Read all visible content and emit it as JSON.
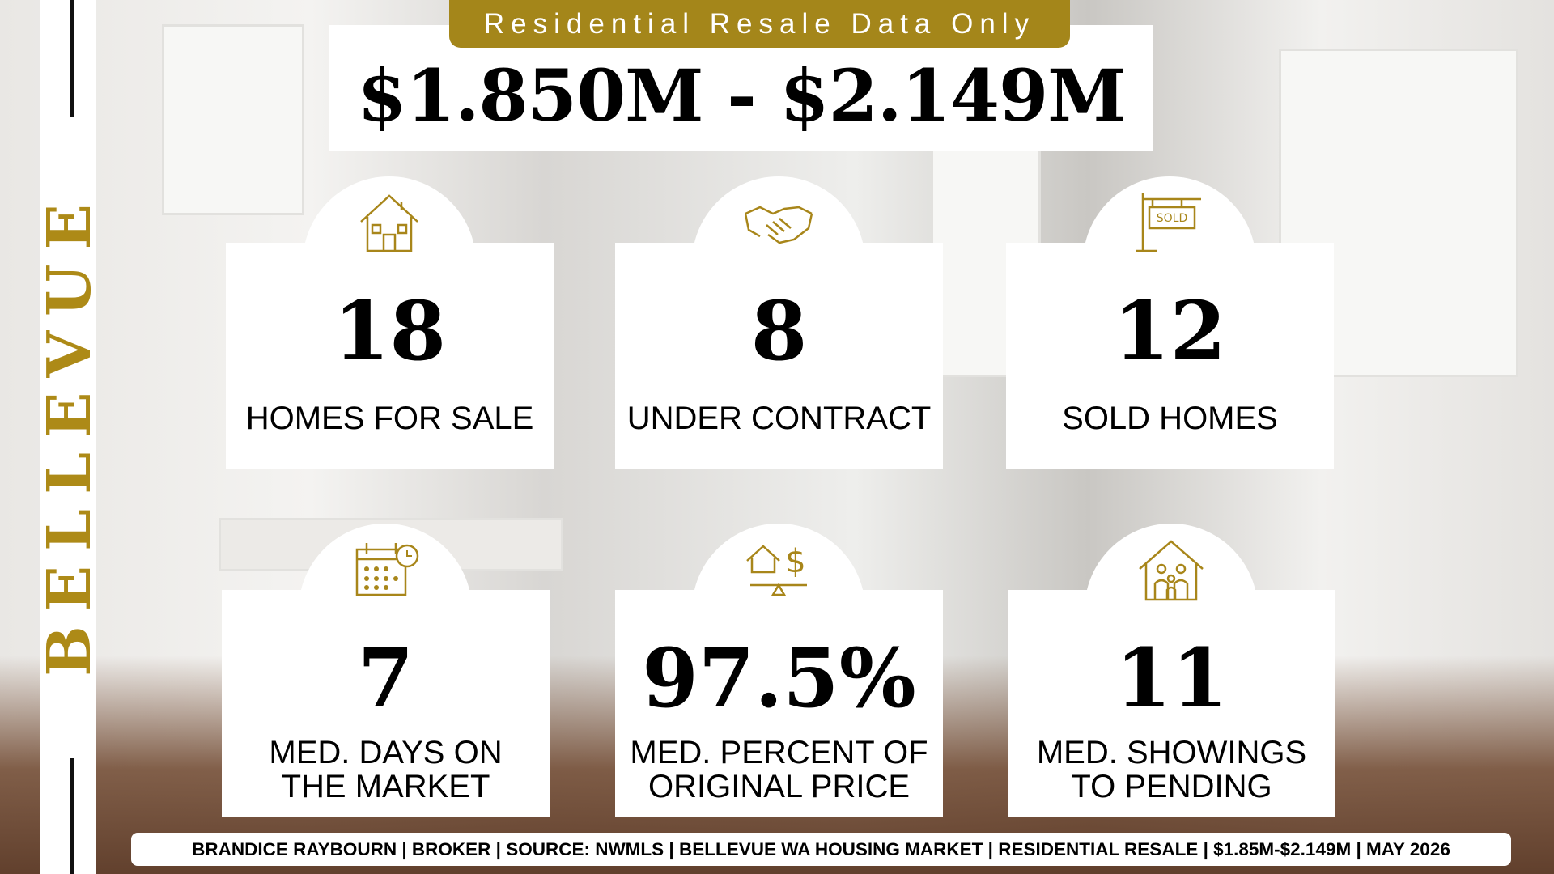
{
  "side_label": "BELLEVUE",
  "badge": "Residential Resale Data Only",
  "price_range": "$1.850M - $2.149M",
  "cards": [
    {
      "value": "18",
      "label_lines": [
        "HOMES FOR SALE"
      ]
    },
    {
      "value": "8",
      "label_lines": [
        "UNDER CONTRACT"
      ]
    },
    {
      "value": "12",
      "label_lines": [
        "SOLD HOMES"
      ]
    },
    {
      "value": "7",
      "label_lines": [
        "MED. DAYS ON",
        "THE MARKET"
      ]
    },
    {
      "value": "97.5%",
      "label_lines": [
        "MED. PERCENT OF",
        "ORIGINAL PRICE"
      ]
    },
    {
      "value": "11",
      "label_lines": [
        "MED. SHOWINGS",
        "TO PENDING"
      ]
    }
  ],
  "footer": "BRANDICE RAYBOURN | BROKER | SOURCE: NWMLS | BELLEVUE WA HOUSING MARKET | RESIDENTIAL RESALE | $1.85M-$2.149M | MAY 2026"
}
